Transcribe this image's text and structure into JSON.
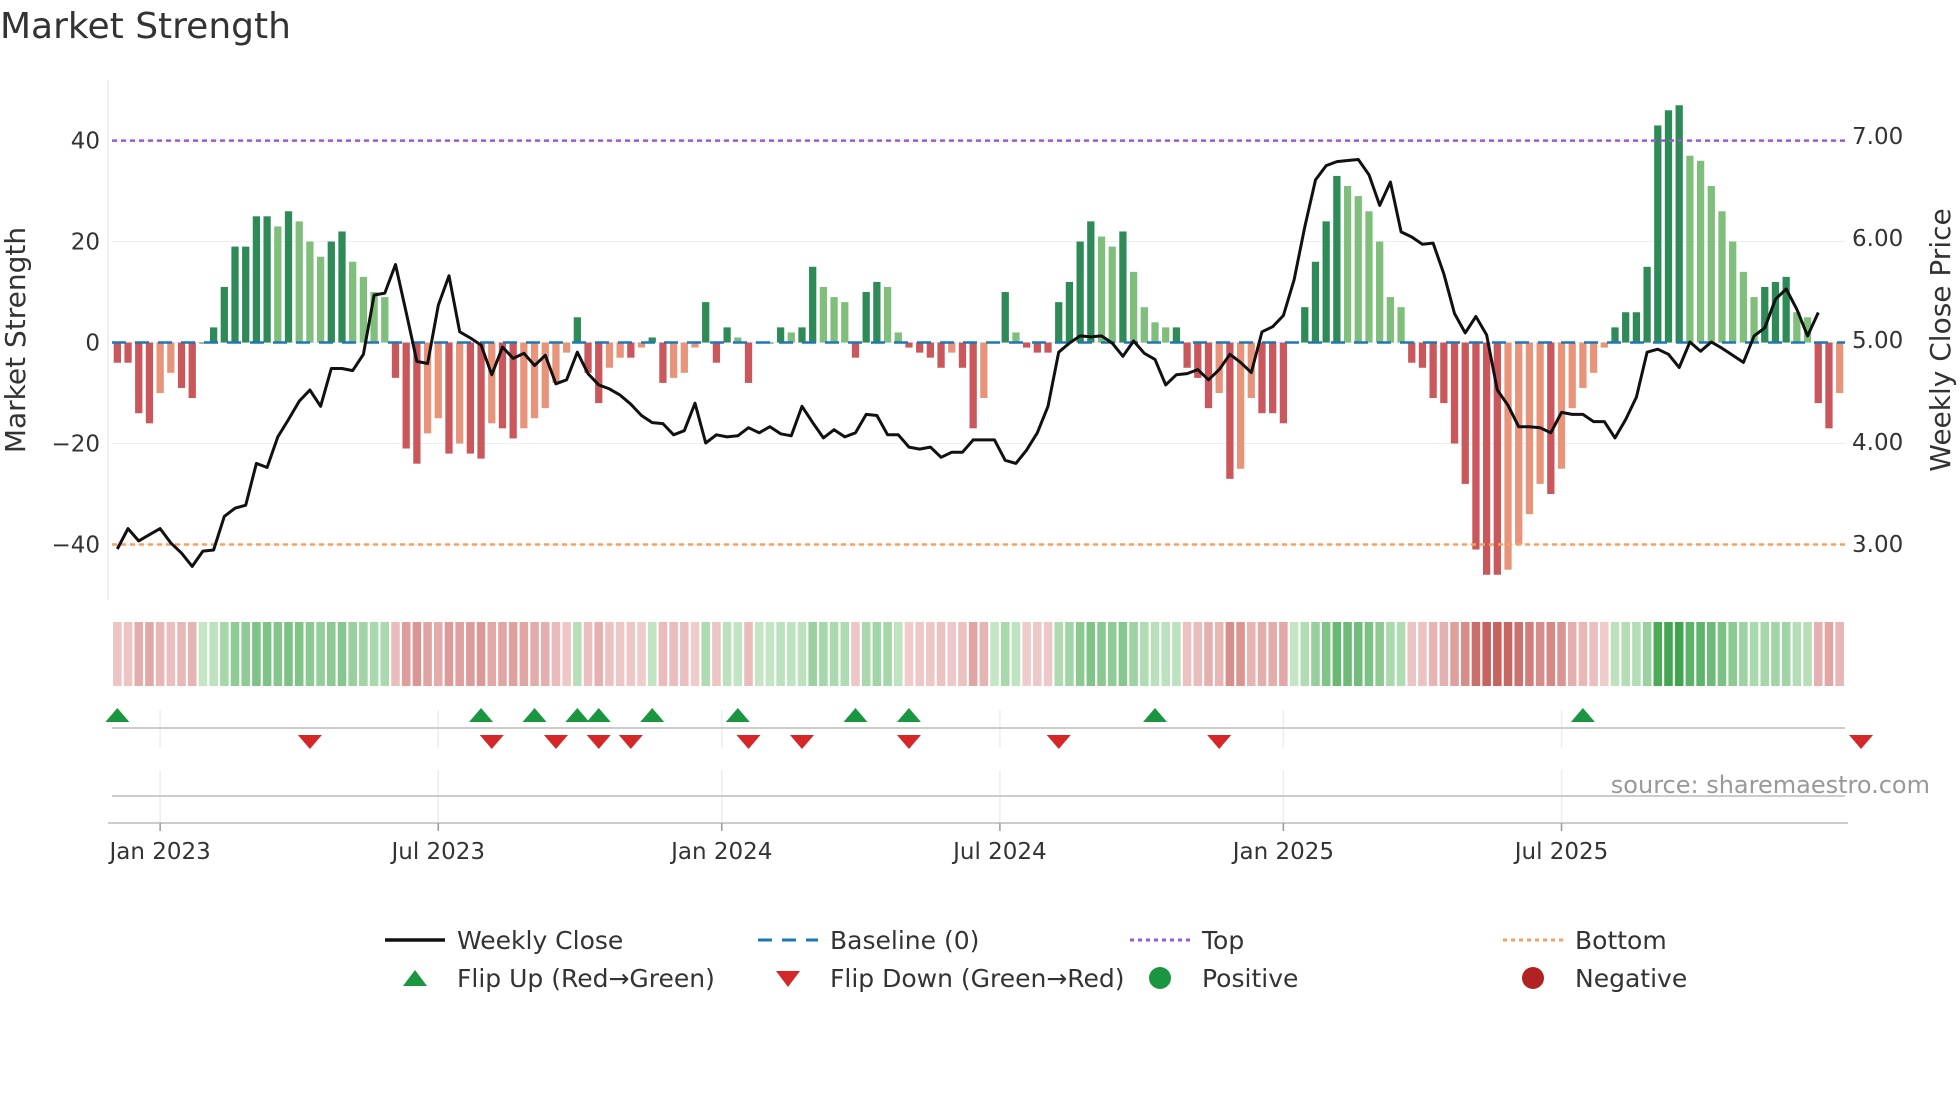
{
  "chart_data": {
    "type": "bar+line",
    "title": "Market Strength",
    "ylabel_left": "Market Strength",
    "ylabel_right": "Weekly Close Price",
    "source": "source: sharemaestro.com",
    "left_ylim": [
      -51,
      52
    ],
    "left_ticks": [
      40,
      20,
      0,
      -20,
      -40
    ],
    "left_tick_labels": [
      "40",
      "20",
      "0",
      "−20",
      "−40"
    ],
    "right_ylim": [
      2.45,
      7.55
    ],
    "right_ticks": [
      7,
      6,
      5,
      4,
      3
    ],
    "right_tick_labels": [
      "7.00",
      "6.00",
      "5.00",
      "4.00",
      "3.00"
    ],
    "top_line": 40,
    "bottom_line": -40,
    "baseline": 0,
    "x_tick_labels": [
      "Jan 2023",
      "Jul 2023",
      "Jan 2024",
      "Jul 2024",
      "Jan 2025",
      "Jul 2025"
    ],
    "x_tick_weeks": [
      4,
      30,
      56.5,
      82.5,
      109,
      135
    ],
    "strength": [
      -4,
      -4,
      -14,
      -16,
      -10,
      -6,
      -9,
      -11,
      0,
      3,
      11,
      19,
      19,
      25,
      25,
      23,
      26,
      24,
      20,
      17,
      20,
      22,
      16,
      13,
      10,
      9,
      -7,
      -21,
      -24,
      -18,
      -15,
      -22,
      -20,
      -22,
      -23,
      -16,
      -17,
      -19,
      -17,
      -15,
      -13,
      -8,
      -2,
      5,
      -6,
      -12,
      -5,
      -3,
      -3,
      -1,
      1,
      -8,
      -7,
      -6,
      -1,
      8,
      -4,
      3,
      1,
      -8,
      0,
      0,
      3,
      2,
      3,
      15,
      11,
      9,
      8,
      -3,
      10,
      12,
      11,
      2,
      -1,
      -2,
      -3,
      -5,
      -2,
      -5,
      -17,
      -11,
      0,
      10,
      2,
      -1,
      -2,
      -2,
      8,
      12,
      20,
      24,
      21,
      19,
      22,
      14,
      7,
      4,
      3,
      3,
      -5,
      -7,
      -13,
      -10,
      -27,
      -25,
      -11,
      -14,
      -14,
      -16,
      0,
      7,
      16,
      24,
      33,
      31,
      29,
      26,
      20,
      9,
      7,
      -4,
      -5,
      -11,
      -12,
      -20,
      -28,
      -41,
      -46,
      -46,
      -45,
      -40,
      -34,
      -28,
      -30,
      -25,
      -13,
      -9,
      -6,
      -1,
      3,
      6,
      6,
      15,
      43,
      46,
      47,
      37,
      36,
      31,
      26,
      20,
      14,
      9,
      11,
      12,
      13,
      6,
      5,
      -12,
      -17,
      -10
    ],
    "close": [
      2.95,
      3.15,
      3.03,
      3.09,
      3.15,
      3.01,
      2.91,
      2.78,
      2.93,
      2.94,
      3.27,
      3.35,
      3.38,
      3.79,
      3.75,
      4.05,
      4.22,
      4.4,
      4.51,
      4.35,
      4.72,
      4.72,
      4.7,
      4.86,
      5.44,
      5.46,
      5.74,
      5.27,
      4.79,
      4.77,
      5.34,
      5.63,
      5.08,
      5.02,
      4.95,
      4.66,
      4.93,
      4.82,
      4.87,
      4.75,
      4.85,
      4.57,
      4.61,
      4.88,
      4.67,
      4.56,
      4.52,
      4.46,
      4.37,
      4.26,
      4.19,
      4.18,
      4.07,
      4.11,
      4.38,
      3.99,
      4.07,
      4.05,
      4.06,
      4.14,
      4.09,
      4.15,
      4.08,
      4.06,
      4.35,
      4.19,
      4.04,
      4.12,
      4.05,
      4.09,
      4.27,
      4.26,
      4.07,
      4.07,
      3.95,
      3.93,
      3.95,
      3.85,
      3.9,
      3.9,
      4.02,
      4.02,
      4.02,
      3.82,
      3.79,
      3.92,
      4.09,
      4.35,
      4.88,
      4.97,
      5.04,
      5.03,
      5.04,
      4.97,
      4.84,
      4.99,
      4.87,
      4.81,
      4.56,
      4.66,
      4.67,
      4.71,
      4.61,
      4.71,
      4.86,
      4.78,
      4.68,
      5.08,
      5.13,
      5.24,
      5.59,
      6.11,
      6.57,
      6.71,
      6.75,
      6.76,
      6.77,
      6.62,
      6.32,
      6.55,
      6.06,
      6.01,
      5.94,
      5.95,
      5.65,
      5.26,
      5.07,
      5.23,
      5.05,
      4.51,
      4.36,
      4.15,
      4.15,
      4.14,
      4.09,
      4.29,
      4.27,
      4.27,
      4.2,
      4.2,
      4.04,
      4.22,
      4.44,
      4.88,
      4.91,
      4.86,
      4.73,
      4.98,
      4.89,
      4.98,
      4.92,
      4.85,
      4.78,
      5.04,
      5.12,
      5.4,
      5.5,
      5.3,
      5.04,
      5.27
    ],
    "flip_up_weeks": [
      0,
      34,
      39,
      43,
      45,
      50,
      58,
      69,
      74,
      97,
      137
    ],
    "flip_down_weeks": [
      18,
      35,
      41,
      45,
      48,
      59,
      64,
      74,
      88,
      103,
      163
    ],
    "legend": [
      {
        "label": "Weekly Close",
        "symbol": "solid-line",
        "color": "#111111"
      },
      {
        "label": "Baseline (0)",
        "symbol": "dashed-line",
        "color": "#1f77b4"
      },
      {
        "label": "Top",
        "symbol": "dotted-line",
        "color": "#9b59d0"
      },
      {
        "label": "Bottom",
        "symbol": "dotted-line",
        "color": "#f4a261"
      },
      {
        "label": "Flip Up (Red→Green)",
        "symbol": "triangle-up",
        "color": "#1a9641"
      },
      {
        "label": "Flip Down (Green→Red)",
        "symbol": "triangle-down",
        "color": "#d62728"
      },
      {
        "label": "Positive",
        "symbol": "circle",
        "color": "#1a9641"
      },
      {
        "label": "Negative",
        "symbol": "circle",
        "color": "#b22222"
      }
    ]
  },
  "colors": {
    "pos_dark": "#2e8b57",
    "pos_light": "#7fbf7b",
    "neg_dark": "#c9575b",
    "neg_light": "#e8947a",
    "price_line": "#111111",
    "baseline": "#1f77b4",
    "top": "#9b59d0",
    "bottom": "#f4a261",
    "flip_up": "#1a9641",
    "flip_down": "#d62728",
    "axis": "#cccccc",
    "grid": "#eeeeee"
  }
}
